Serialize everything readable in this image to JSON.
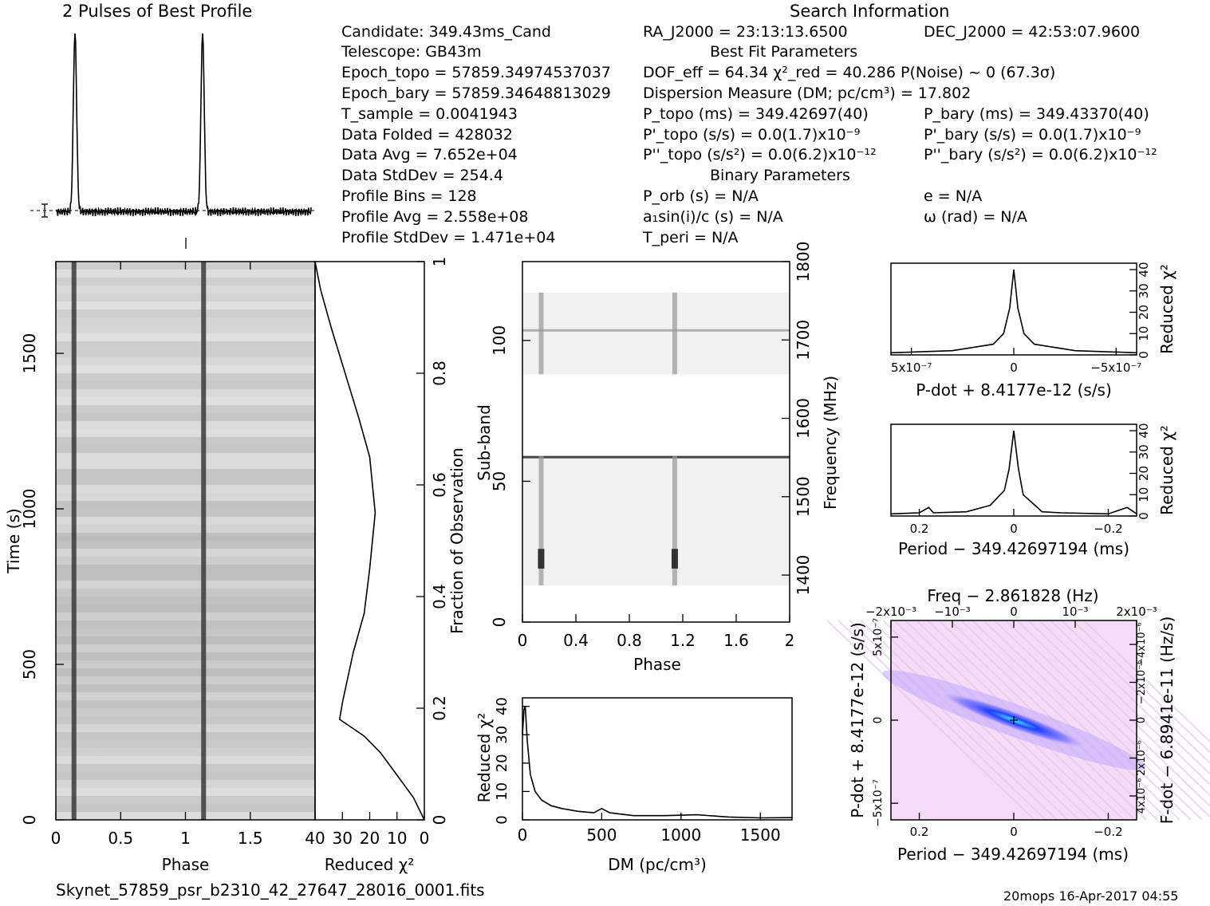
{
  "header": {
    "profile_title": "2 Pulses of Best Profile",
    "search_title": "Search Information",
    "best_fit_title": "Best Fit Parameters",
    "binary_title": "Binary Parameters"
  },
  "candidate_info": {
    "candidate": "Candidate:  349.43ms_Cand",
    "telescope": "Telescope:  GB43m",
    "epoch_topo": "Epoch_topo = 57859.34974537037",
    "epoch_bary": "Epoch_bary = 57859.34648813029",
    "t_sample": "T_sample  =  0.0041943",
    "data_folded": "Data Folded  =  428032",
    "data_avg": "Data Avg  =  7.652e+04",
    "data_stddev": "Data StdDev  =  254.4",
    "profile_bins": "Profile Bins  =  128",
    "profile_avg": "Profile Avg  =  2.558e+08",
    "profile_stddev": "Profile StdDev  =  1.471e+04"
  },
  "search_info": {
    "ra": "RA_J2000 = 23:13:13.6500",
    "dec": "DEC_J2000 = 42:53:07.9600",
    "dof": "DOF_eff = 64.34  χ²_red = 40.286  P(Noise) ~ 0   (67.3σ)",
    "dm": "Dispersion Measure (DM; pc/cm³) = 17.802",
    "p_topo": "P_topo (ms) =  349.42697(40)",
    "p_bary": "P_bary (ms) =  349.43370(40)",
    "pd_topo": "P'_topo (s/s) = 0.0(1.7)x10⁻⁹",
    "pd_bary": "P'_bary (s/s) = 0.0(1.7)x10⁻⁹",
    "pdd_topo": "P''_topo (s/s²) = 0.0(6.2)x10⁻¹²",
    "pdd_bary": "P''_bary (s/s²) = 0.0(6.2)x10⁻¹²",
    "p_orb": "P_orb (s) = N/A",
    "ecc": "e = N/A",
    "a1sini": "a₁sin(i)/c (s) = N/A",
    "omega": "ω (rad) = N/A",
    "t_peri": "T_peri = N/A"
  },
  "footer": {
    "filename": "Skynet_57859_psr_b2310_42_27647_28016_0001.fits",
    "stamp": "20mops 16-Apr-2017 04:55"
  },
  "chart_data": [
    {
      "id": "profile",
      "type": "line",
      "title": "2 Pulses of Best Profile",
      "xlim": [
        0,
        2
      ],
      "x": [
        0,
        0.12,
        0.135,
        0.15,
        0.165,
        0.18,
        0.5,
        1.0,
        1.12,
        1.135,
        1.15,
        1.165,
        1.18,
        1.5,
        2.0
      ],
      "values": [
        0.02,
        0.03,
        0.6,
        1.0,
        0.6,
        0.03,
        0.02,
        0.01,
        0.03,
        0.6,
        1.0,
        0.6,
        0.03,
        0.02,
        0.02
      ]
    },
    {
      "id": "time-phase",
      "type": "heatmap",
      "xlabel": "Phase",
      "ylabel": "Time (s)",
      "xlim": [
        0,
        2
      ],
      "ylim": [
        0,
        1795
      ],
      "xticks": [
        "0",
        "0.5",
        "1",
        "1.5"
      ],
      "yticks": [
        "0",
        "500",
        "1000",
        "1500"
      ],
      "pulse_phases": [
        0.14,
        1.14
      ]
    },
    {
      "id": "chi2-vs-time",
      "type": "line",
      "xlabel": "Reduced χ²",
      "ylabel": "Fraction of Observation",
      "xlim": [
        40,
        0
      ],
      "ylim": [
        0,
        1
      ],
      "xticks": [
        "40",
        "30",
        "20",
        "10",
        "0"
      ],
      "yticks": [
        "0",
        "0.2",
        "0.4",
        "0.6",
        "0.8",
        "1"
      ],
      "x": [
        0,
        4,
        10,
        16,
        22,
        28,
        31,
        30,
        26,
        22,
        20,
        18,
        20,
        24,
        29,
        34,
        38,
        40
      ],
      "y": [
        0,
        0.04,
        0.08,
        0.12,
        0.15,
        0.17,
        0.18,
        0.21,
        0.3,
        0.37,
        0.45,
        0.55,
        0.65,
        0.72,
        0.8,
        0.88,
        0.95,
        1.0
      ]
    },
    {
      "id": "subband-phase",
      "type": "heatmap",
      "xlabel": "Phase",
      "ylabel": "Sub-band",
      "y2label": "Frequency (MHz)",
      "xlim": [
        0,
        2
      ],
      "ylim": [
        0,
        128
      ],
      "xticks": [
        "0",
        "0.4",
        "0.8",
        "1.2",
        "1.6",
        "2"
      ],
      "yticks": [
        "0",
        "50",
        "100"
      ],
      "y2ticks": [
        "1400",
        "1500",
        "1600",
        "1700",
        "1800"
      ],
      "pulse_phases": [
        0.14,
        1.14
      ]
    },
    {
      "id": "chi2-vs-dm",
      "type": "line",
      "xlabel": "DM (pc/cm³)",
      "ylabel": "Reduced χ²",
      "xlim": [
        0,
        1700
      ],
      "ylim": [
        0,
        43
      ],
      "xticks": [
        "0",
        "500",
        "1000",
        "1500"
      ],
      "yticks": [
        "0",
        "10",
        "20",
        "30",
        "40"
      ],
      "x": [
        0,
        10,
        17.8,
        30,
        50,
        80,
        120,
        180,
        250,
        350,
        450,
        500,
        550,
        700,
        900,
        1100,
        1300,
        1500,
        1700
      ],
      "values": [
        30,
        39,
        40,
        28,
        16,
        10,
        7,
        5,
        4,
        3,
        2.5,
        4,
        2.5,
        1.5,
        1.5,
        1.8,
        1.0,
        0.7,
        0.8
      ]
    },
    {
      "id": "chi2-vs-pdot",
      "type": "line",
      "xlabel": "P-dot + 8.4177e-12 (s/s)",
      "ylabel": "Reduced χ²",
      "xlim": [
        6e-07,
        -6e-07
      ],
      "ylim": [
        0,
        43
      ],
      "xticks": [
        "5x10⁻⁷",
        "0",
        "−5x10⁻⁷"
      ],
      "yticks": [
        "0",
        "10",
        "20",
        "30",
        "40"
      ],
      "x": [
        6e-07,
        3e-07,
        1e-07,
        5e-08,
        2e-08,
        0,
        -2e-08,
        -5e-08,
        -1e-07,
        -3e-07,
        -6e-07
      ],
      "values": [
        1,
        2,
        5,
        10,
        22,
        40,
        22,
        10,
        5,
        2,
        1
      ]
    },
    {
      "id": "chi2-vs-period",
      "type": "line",
      "xlabel": "Period − 349.42697194 (ms)",
      "ylabel": "Reduced χ²",
      "xlim": [
        0.26,
        -0.26
      ],
      "ylim": [
        0,
        43
      ],
      "xticks": [
        "0.2",
        "0",
        "−0.2"
      ],
      "yticks": [
        "0",
        "10",
        "20",
        "30",
        "40"
      ],
      "x": [
        0.26,
        0.2,
        0.18,
        0.17,
        0.1,
        0.05,
        0.02,
        0.01,
        0,
        -0.01,
        -0.02,
        -0.04,
        -0.06,
        -0.1,
        -0.2,
        -0.24,
        -0.26
      ],
      "values": [
        1,
        1.5,
        4,
        1.5,
        2,
        5,
        12,
        22,
        40,
        22,
        10,
        6,
        2,
        1.5,
        1,
        4,
        1
      ]
    },
    {
      "id": "period-pdot",
      "type": "heatmap",
      "title": "Freq − 2.861828 (Hz)",
      "xlabel": "Period − 349.42697194 (ms)",
      "ylabel": "P-dot + 8.4177e-12 (s/s)",
      "y2label": "F-dot − 6.8941e-11 (Hz/s)",
      "xlim": [
        0.26,
        -0.26
      ],
      "ylim": [
        6e-07,
        -6e-07
      ],
      "xticks": [
        "0.2",
        "0",
        "−0.2"
      ],
      "x2ticks": [
        "−2x10⁻³",
        "−10⁻³",
        "0",
        "10⁻³",
        "2x10⁻³"
      ],
      "yticks": [
        "−5x10⁻⁷",
        "0",
        "5x10⁻⁷"
      ],
      "y2ticks": [
        "−4x10⁻⁶",
        "−2x10⁻⁶",
        "0",
        "2x10⁻⁶",
        "4x10⁻⁶"
      ],
      "best": [
        0,
        0
      ]
    }
  ]
}
